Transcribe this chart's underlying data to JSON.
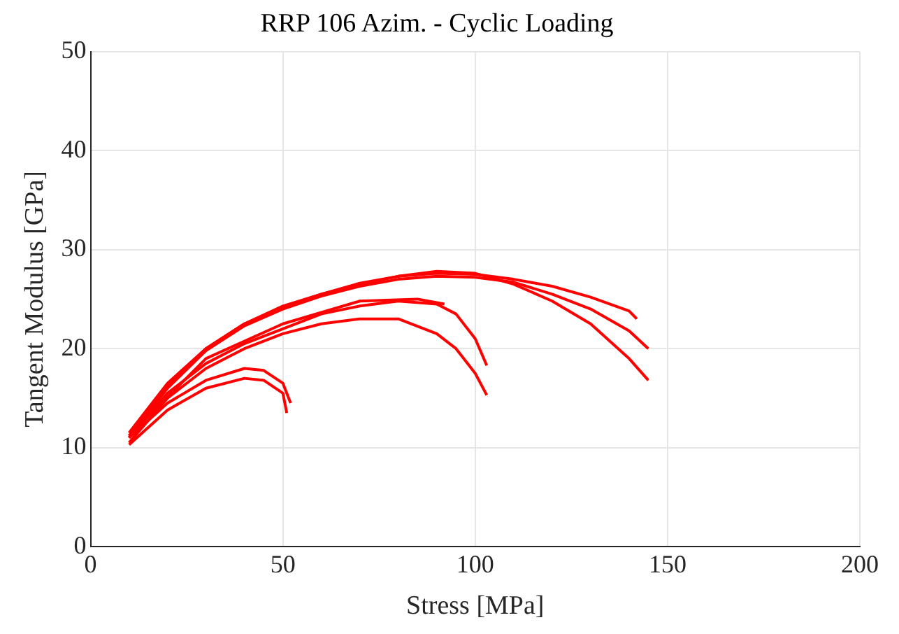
{
  "chart_data": {
    "type": "line",
    "title": "RRP 106 Azim. - Cyclic Loading",
    "xlabel": "Stress [MPa]",
    "ylabel": "Tangent Modulus [GPa]",
    "xlim": [
      0,
      200
    ],
    "xticks": [
      0,
      50,
      100,
      150,
      200
    ],
    "ylim": [
      0,
      50
    ],
    "yticks": [
      0,
      10,
      20,
      30,
      40,
      50
    ],
    "grid": true,
    "legend": false,
    "marker": "none",
    "line_style": "solid",
    "series": [
      {
        "color": "#ff0000",
        "x": [
          10,
          20,
          30,
          40,
          45,
          50,
          52
        ],
        "values": [
          11,
          14.5,
          16.8,
          18,
          17.8,
          16.5,
          14.5
        ]
      },
      {
        "color": "#ff0000",
        "x": [
          10,
          20,
          30,
          40,
          45,
          50,
          51
        ],
        "values": [
          10.3,
          13.8,
          16,
          17,
          16.8,
          15.5,
          13.5
        ]
      },
      {
        "color": "#ff0000",
        "x": [
          10,
          20,
          30,
          40,
          50,
          60,
          70,
          80,
          90,
          95,
          100,
          103
        ],
        "values": [
          11,
          15.5,
          18.5,
          20.5,
          22,
          23.5,
          24.3,
          24.8,
          24.5,
          23.5,
          21,
          18.3
        ]
      },
      {
        "color": "#ff0000",
        "x": [
          10,
          20,
          30,
          40,
          50,
          60,
          70,
          80,
          90,
          95,
          100,
          103
        ],
        "values": [
          10.5,
          15,
          18,
          20,
          21.5,
          22.5,
          23,
          23,
          21.5,
          20,
          17.5,
          15.3
        ]
      },
      {
        "color": "#ff0000",
        "x": [
          10,
          30,
          50,
          70,
          85,
          92
        ],
        "values": [
          11.2,
          19,
          22.5,
          24.8,
          25,
          24.5
        ]
      },
      {
        "color": "#ff0000",
        "x": [
          10,
          20,
          30,
          40,
          50,
          60,
          70,
          80,
          90,
          100,
          110,
          120,
          130,
          140,
          142
        ],
        "values": [
          11.5,
          16.5,
          20,
          22.5,
          24.3,
          25.5,
          26.5,
          27.3,
          27.6,
          27.5,
          27,
          26.3,
          25.2,
          23.8,
          23
        ]
      },
      {
        "color": "#ff0000",
        "x": [
          10,
          20,
          30,
          40,
          50,
          60,
          70,
          80,
          90,
          100,
          110,
          120,
          130,
          140,
          145
        ],
        "values": [
          11,
          16,
          19.8,
          22.3,
          24,
          25.3,
          26.3,
          27,
          27.3,
          27.2,
          26.7,
          25.5,
          24,
          21.8,
          20
        ]
      },
      {
        "color": "#ff0000",
        "x": [
          10,
          20,
          30,
          40,
          50,
          60,
          70,
          80,
          90,
          100,
          110,
          120,
          130,
          140,
          145
        ],
        "values": [
          11.2,
          16.3,
          20,
          22.5,
          24.2,
          25.5,
          26.6,
          27.3,
          27.8,
          27.6,
          26.5,
          24.8,
          22.5,
          19,
          16.8
        ]
      }
    ]
  }
}
